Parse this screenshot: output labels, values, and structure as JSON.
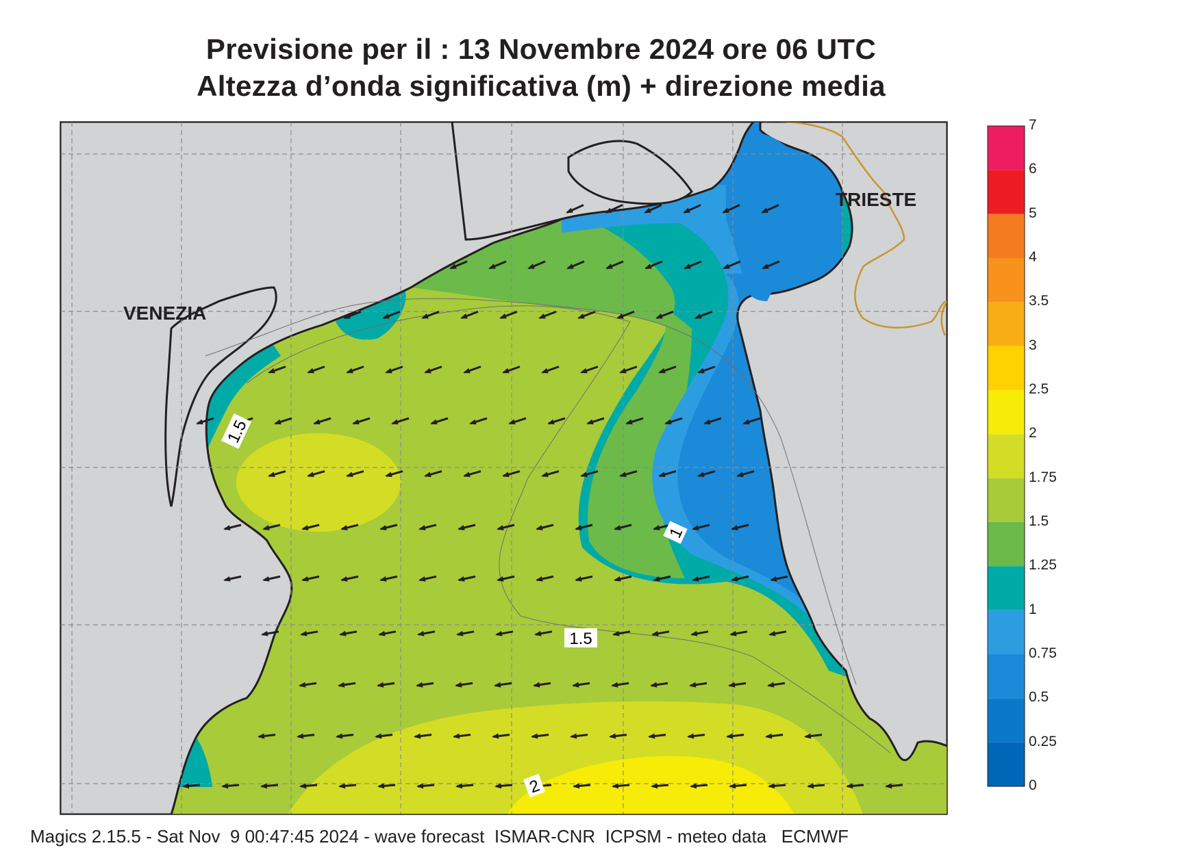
{
  "title_line1": "Previsione per il  :  13 Novembre  2024   ore 06 UTC",
  "title_line2": "Altezza d’onda significativa (m) + direzione media",
  "city_labels": {
    "venezia": "VENEZIA",
    "trieste": "TRIESTE"
  },
  "contour_labels": [
    "1.5",
    "1",
    "1.5",
    "2"
  ],
  "colorbar": {
    "levels": [
      {
        "label": "0",
        "color": "#0066b8"
      },
      {
        "label": "0.25",
        "color": "#0a79c8"
      },
      {
        "label": "0.5",
        "color": "#1b8ad8"
      },
      {
        "label": "0.75",
        "color": "#2d9de2"
      },
      {
        "label": "1",
        "color": "#00aaa7"
      },
      {
        "label": "1.25",
        "color": "#6bba4a"
      },
      {
        "label": "1.5",
        "color": "#a8cb3a"
      },
      {
        "label": "1.75",
        "color": "#d4dd25"
      },
      {
        "label": "2",
        "color": "#f7ec07"
      },
      {
        "label": "2.5",
        "color": "#fdd200"
      },
      {
        "label": "3",
        "color": "#f9ad14"
      },
      {
        "label": "3.5",
        "color": "#f8921d"
      },
      {
        "label": "4",
        "color": "#f47b20"
      },
      {
        "label": "5",
        "color": "#ed1c24"
      },
      {
        "label": "6",
        "color": "#ee1c60"
      },
      {
        "label": "7",
        "color": ""
      }
    ]
  },
  "land_color": "#d1d3d4",
  "border_color": "#c8962e",
  "wave_direction": "from north-east (arrows pointing south-west / west)",
  "footer": "Magics 2.15.5 - Sat Nov  9 00:47:45 2024 - wave forecast  ISMAR-CNR  ICPSM - meteo data   ECMWF"
}
